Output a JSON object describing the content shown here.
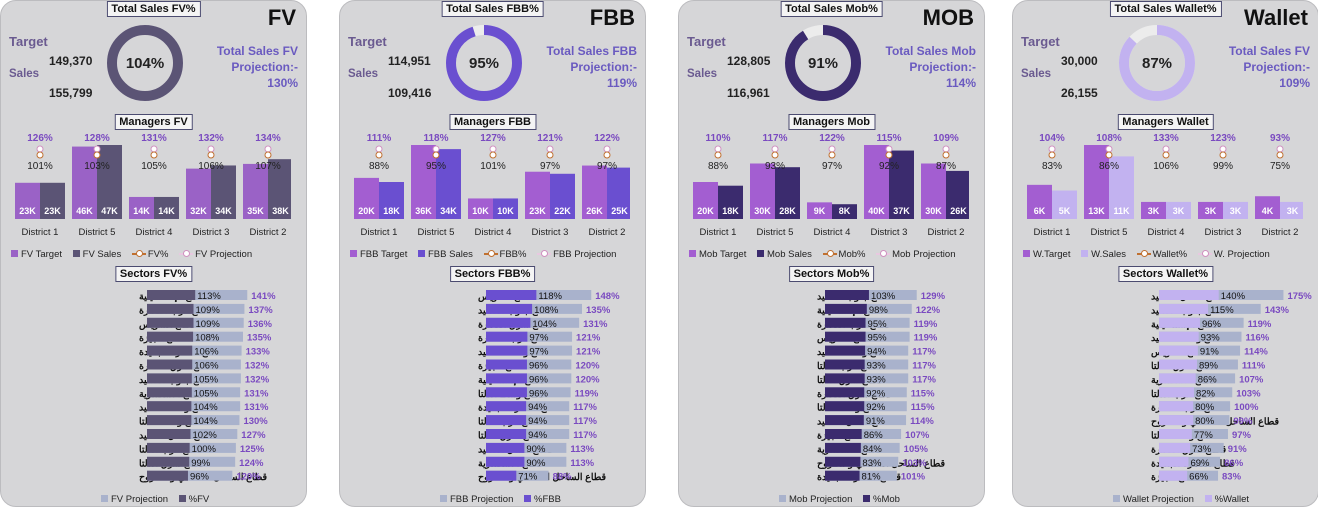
{
  "panels": [
    {
      "title": "FV",
      "total_label": "Total Sales FV%",
      "target_label": "Target",
      "sales_label": "Sales",
      "target_value": "149,370",
      "sales_value": "155,799",
      "gauge_pct": "104%",
      "gauge_fraction": 1.0,
      "projection_line1": "Total Sales FV",
      "projection_line2": "Projection:-",
      "projection_value": "130%",
      "managers_label": "Managers FV",
      "colors": {
        "accent": "#8a6fb0",
        "target": "#9a62c6",
        "sales": "#5b5475",
        "proj_line": "#c07030",
        "gauge": "#5b5475",
        "gauge_track": "#ececec",
        "sector_bar": "#5b5475",
        "sector_proj": "#a9b2cc",
        "pct_text": "#7a4ac0"
      },
      "chart_data": {
        "type": "bar",
        "categories": [
          "District 1",
          "District 5",
          "District 4",
          "District 3",
          "District 2"
        ],
        "series": [
          {
            "name": "FV Target",
            "values": [
              23,
              46,
              14,
              32,
              35
            ],
            "labels": [
              "23K",
              "46K",
              "14K",
              "32K",
              "35K"
            ]
          },
          {
            "name": "FV Sales",
            "values": [
              23,
              47,
              14,
              34,
              38
            ],
            "labels": [
              "23K",
              "47K",
              "14K",
              "34K",
              "38K"
            ]
          },
          {
            "name": "FV%",
            "values": [
              101,
              103,
              105,
              106,
              107
            ],
            "labels": [
              "101%",
              "103%",
              "105%",
              "106%",
              "107%"
            ]
          },
          {
            "name": "FV Projection",
            "values": [
              126,
              128,
              131,
              132,
              134
            ],
            "labels": [
              "126%",
              "128%",
              "131%",
              "132%",
              "134%"
            ]
          }
        ]
      },
      "legend": [
        "FV Target",
        "FV Sales",
        "FV%",
        "FV Projection"
      ],
      "sectors_label": "Sectors FV%",
      "sectors": {
        "type": "bar",
        "names": [
          "قطاع الإسماعيلية",
          "قطاع غرب القاهرة",
          "قطاع السويس",
          "قطاع الجيزة",
          "قطاع القاهرة الجديدة",
          "قطاع شرق القاهرة",
          "قطاع جنوب الصعيد",
          "قطاع الاسكندرية",
          "قطاع وسط الصعيد",
          "قطاع وسط الدلتا",
          "قطاع شمال الصعيد",
          "قطاع غرب الدلتا",
          "قطاع شرق الدلتا",
          "قطاع الساحل الشمالي و مطروح"
        ],
        "pct": [
          113,
          109,
          109,
          108,
          106,
          106,
          105,
          105,
          104,
          104,
          102,
          100,
          99,
          96
        ],
        "pct_labels": [
          "113%",
          "109%",
          "109%",
          "108%",
          "106%",
          "106%",
          "105%",
          "105%",
          "104%",
          "104%",
          "102%",
          "100%",
          "99%",
          "96%"
        ],
        "proj": [
          141,
          137,
          136,
          135,
          133,
          132,
          132,
          131,
          131,
          130,
          127,
          125,
          124,
          120
        ],
        "proj_labels": [
          "141%",
          "137%",
          "136%",
          "135%",
          "133%",
          "132%",
          "132%",
          "131%",
          "131%",
          "130%",
          "127%",
          "125%",
          "124%",
          "120%"
        ]
      },
      "sector_legend": [
        "FV Projection",
        "%FV"
      ]
    },
    {
      "title": "FBB",
      "total_label": "Total Sales FBB%",
      "target_label": "Target",
      "sales_label": "Sales",
      "target_value": "114,951",
      "sales_value": "109,416",
      "gauge_pct": "95%",
      "gauge_fraction": 0.95,
      "projection_line1": "Total Sales FBB",
      "projection_line2": "Projection:-",
      "projection_value": "119%",
      "managers_label": "Managers FBB",
      "colors": {
        "accent": "#8a6fb0",
        "target": "#a35ed1",
        "sales": "#6a4fd0",
        "proj_line": "#c07030",
        "gauge": "#6a4fd0",
        "gauge_track": "#ececec",
        "sector_bar": "#6a4fd0",
        "sector_proj": "#a9b2cc",
        "pct_text": "#7a4ac0"
      },
      "chart_data": {
        "type": "bar",
        "categories": [
          "District 1",
          "District 5",
          "District 4",
          "District 3",
          "District 2"
        ],
        "series": [
          {
            "name": "FBB Target",
            "values": [
              20,
              36,
              10,
              23,
              26
            ],
            "labels": [
              "20K",
              "36K",
              "10K",
              "23K",
              "26K"
            ]
          },
          {
            "name": "FBB Sales",
            "values": [
              18,
              34,
              10,
              22,
              25
            ],
            "labels": [
              "18K",
              "34K",
              "10K",
              "22K",
              "25K"
            ]
          },
          {
            "name": "FBB%",
            "values": [
              88,
              95,
              101,
              97,
              97
            ],
            "labels": [
              "88%",
              "95%",
              "101%",
              "97%",
              "97%"
            ]
          },
          {
            "name": "FBB Projection",
            "values": [
              111,
              118,
              127,
              121,
              122
            ],
            "labels": [
              "111%",
              "118%",
              "127%",
              "121%",
              "122%"
            ]
          }
        ]
      },
      "legend": [
        "FBB Target",
        "FBB Sales",
        "FBB%",
        "FBB Projection"
      ],
      "sectors_label": "Sectors FBB%",
      "sectors": {
        "type": "bar",
        "names": [
          "قطاع السويس",
          "قطاع جنوب الصعيد",
          "قطاع شرق القاهرة",
          "قطاع غرب القاهرة",
          "قطاع وسط الصعيد",
          "قطاع الجيزة",
          "قطاع الإسماعيلية",
          "قطاع وسط الدلتا",
          "قطاع القاهرة الجديدة",
          "قطاع غرب الدلتا",
          "قطاع شرق الدلتا",
          "قطاع شمال الصعيد",
          "قطاع الاسكندرية",
          "قطاع الساحل الشمالي و مطروح"
        ],
        "pct": [
          118,
          108,
          104,
          97,
          97,
          96,
          96,
          96,
          94,
          94,
          94,
          90,
          90,
          71
        ],
        "pct_labels": [
          "118%",
          "108%",
          "104%",
          "97%",
          "97%",
          "96%",
          "96%",
          "96%",
          "94%",
          "94%",
          "94%",
          "90%",
          "90%",
          "71%"
        ],
        "proj": [
          148,
          135,
          131,
          121,
          121,
          120,
          120,
          119,
          117,
          117,
          117,
          113,
          113,
          88
        ],
        "proj_labels": [
          "148%",
          "135%",
          "131%",
          "121%",
          "121%",
          "120%",
          "120%",
          "119%",
          "117%",
          "117%",
          "117%",
          "113%",
          "113%",
          "88%"
        ]
      },
      "sector_legend": [
        "FBB Projection",
        "%FBB"
      ]
    },
    {
      "title": "MOB",
      "total_label": "Total Sales Mob%",
      "target_label": "Target",
      "sales_label": "Sales",
      "target_value": "128,805",
      "sales_value": "116,961",
      "gauge_pct": "91%",
      "gauge_fraction": 0.91,
      "projection_line1": "Total Sales Mob",
      "projection_line2": "Projection:-",
      "projection_value": "114%",
      "managers_label": "Managers Mob",
      "colors": {
        "accent": "#8a6fb0",
        "target": "#a35ed1",
        "sales": "#3b2b6e",
        "proj_line": "#c07030",
        "gauge": "#3b2b6e",
        "gauge_track": "#ececec",
        "sector_bar": "#3b2b6e",
        "sector_proj": "#a9b2cc",
        "pct_text": "#7a4ac0"
      },
      "chart_data": {
        "type": "bar",
        "categories": [
          "District 1",
          "District 5",
          "District 4",
          "District 3",
          "District 2"
        ],
        "series": [
          {
            "name": "Mob Target",
            "values": [
              20,
              30,
              9,
              40,
              30
            ],
            "labels": [
              "20K",
              "30K",
              "9K",
              "40K",
              "30K"
            ]
          },
          {
            "name": "Mob Sales",
            "values": [
              18,
              28,
              8,
              37,
              26
            ],
            "labels": [
              "18K",
              "28K",
              "8K",
              "37K",
              "26K"
            ]
          },
          {
            "name": "Mob%",
            "values": [
              88,
              93,
              97,
              92,
              87
            ],
            "labels": [
              "88%",
              "93%",
              "97%",
              "92%",
              "87%"
            ]
          },
          {
            "name": "Mob Projection",
            "values": [
              110,
              117,
              122,
              115,
              109
            ],
            "labels": [
              "110%",
              "117%",
              "122%",
              "115%",
              "109%"
            ]
          }
        ]
      },
      "legend": [
        "Mob Target",
        "Mob Sales",
        "Mob%",
        "Mob Projection"
      ],
      "sectors_label": "Sectors Mob%",
      "sectors": {
        "type": "bar",
        "names": [
          "قطاع جنوب الصعيد",
          "قطاع الإسماعيلية",
          "قطاع غرب القاهرة",
          "قطاع السويس",
          "قطاع وسط الصعيد",
          "قطاع غرب الدلتا",
          "قطاع شرق الدلتا",
          "قطاع شرق القاهرة",
          "قطاع وسط الدلتا",
          "قطاع شمال الصعيد",
          "قطاع الجيزة",
          "قطاع الاسكندرية",
          "قطاع الساحل الشمالي و مطروح",
          "قطاع القاهرة الجديدة"
        ],
        "pct": [
          103,
          98,
          95,
          95,
          94,
          93,
          93,
          92,
          92,
          91,
          86,
          84,
          83,
          81
        ],
        "pct_labels": [
          "103%",
          "98%",
          "95%",
          "95%",
          "94%",
          "93%",
          "93%",
          "92%",
          "92%",
          "91%",
          "86%",
          "84%",
          "83%",
          "81%"
        ],
        "proj": [
          129,
          122,
          119,
          119,
          117,
          117,
          117,
          115,
          115,
          114,
          107,
          105,
          103,
          101
        ],
        "proj_labels": [
          "129%",
          "122%",
          "119%",
          "119%",
          "117%",
          "117%",
          "117%",
          "115%",
          "115%",
          "114%",
          "107%",
          "105%",
          "103%",
          "101%"
        ]
      },
      "sector_legend": [
        "Mob Projection",
        "%Mob"
      ]
    },
    {
      "title": "Wallet",
      "total_label": "Total Sales Wallet%",
      "target_label": "Target",
      "sales_label": "Sales",
      "target_value": "30,000",
      "sales_value": "26,155",
      "gauge_pct": "87%",
      "gauge_fraction": 0.87,
      "projection_line1": "Total Sales FV",
      "projection_line2": "Projection:-",
      "projection_value": "109%",
      "managers_label": "Managers Wallet",
      "colors": {
        "accent": "#8a6fb0",
        "target": "#a35ed1",
        "sales": "#c2b2f0",
        "proj_line": "#c07030",
        "gauge": "#c2b2f0",
        "gauge_track": "#ececec",
        "sector_bar": "#c2b2f0",
        "sector_proj": "#a9b2cc",
        "pct_text": "#7a4ac0"
      },
      "chart_data": {
        "type": "bar",
        "categories": [
          "District 1",
          "District 5",
          "District 4",
          "District 3",
          "District 2"
        ],
        "series": [
          {
            "name": "W.Target",
            "values": [
              6,
              13,
              3,
              3,
              4
            ],
            "labels": [
              "6K",
              "13K",
              "3K",
              "3K",
              "4K"
            ]
          },
          {
            "name": "W.Sales",
            "values": [
              5,
              11,
              3,
              3,
              3
            ],
            "labels": [
              "5K",
              "11K",
              "3K",
              "3K",
              "3K"
            ]
          },
          {
            "name": "Wallet%",
            "values": [
              83,
              86,
              106,
              99,
              75
            ],
            "labels": [
              "83%",
              "86%",
              "106%",
              "99%",
              "75%"
            ]
          },
          {
            "name": "W. Projection",
            "values": [
              104,
              108,
              133,
              123,
              93
            ],
            "labels": [
              "104%",
              "108%",
              "133%",
              "123%",
              "93%"
            ]
          }
        ]
      },
      "legend": [
        "W.Target",
        "W.Sales",
        "Wallet%",
        "W. Projection"
      ],
      "sectors_label": "Sectors Wallet%",
      "sectors": {
        "type": "bar",
        "names": [
          "قطاع شمال الصعيد",
          "قطاع جنوب الصعيد",
          "قطاع الإسماعيلية",
          "قطاع وسط الصعيد",
          "قطاع السويس",
          "قطاع شرق الدلتا",
          "قطاع الاسكندرية",
          "قطاع غرب الدلتا",
          "قطاع غرب القاهرة",
          "قطاع الساحل الشمالي و مطروح",
          "قطاع وسط الدلتا",
          "قطاع شرق القاهرة",
          "قطاع القاهرة الجديدة",
          "قطاع الجيزة"
        ],
        "pct": [
          140,
          115,
          96,
          93,
          91,
          89,
          86,
          82,
          80,
          80,
          77,
          73,
          69,
          66
        ],
        "pct_labels": [
          "140%",
          "115%",
          "96%",
          "93%",
          "91%",
          "89%",
          "86%",
          "82%",
          "80%",
          "80%",
          "77%",
          "73%",
          "69%",
          "66%"
        ],
        "proj": [
          175,
          143,
          119,
          116,
          114,
          111,
          107,
          103,
          100,
          99,
          97,
          91,
          86,
          83
        ],
        "proj_labels": [
          "175%",
          "143%",
          "119%",
          "116%",
          "114%",
          "111%",
          "107%",
          "103%",
          "100%",
          "99%",
          "97%",
          "91%",
          "86%",
          "83%"
        ]
      },
      "sector_legend": [
        "Wallet Projection",
        "%Wallet"
      ]
    }
  ]
}
